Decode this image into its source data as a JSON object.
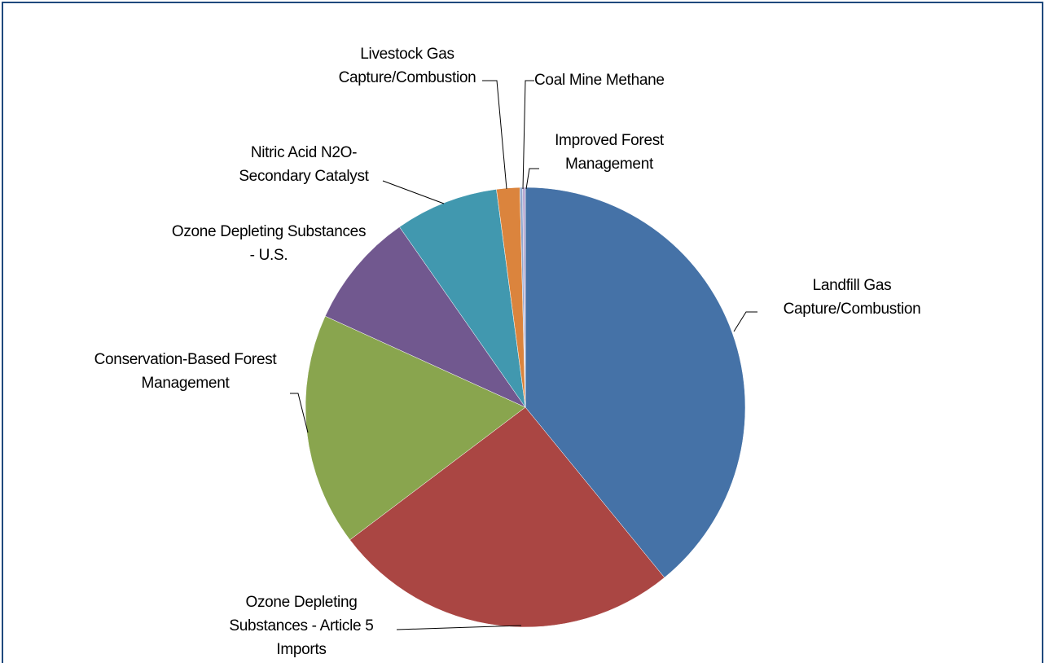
{
  "chart_data": {
    "type": "pie",
    "categories": [
      "Landfill Gas Capture/Combustion",
      "Ozone Depleting Substances - Article 5 Imports",
      "Conservation-Based Forest Management",
      "Ozone Depleting Substances - U.S.",
      "Nitric Acid N2O-Secondary Catalyst",
      "Livestock Gas Capture/Combustion",
      "Coal Mine Methane",
      "Improved Forest Management"
    ],
    "values": [
      39.1,
      25.6,
      17.1,
      8.5,
      7.6,
      1.7,
      0.2,
      0.2
    ],
    "colors": [
      "#4572a7",
      "#aa4643",
      "#89a54e",
      "#71588f",
      "#4198af",
      "#db843d",
      "#93a9cf",
      "#b9a8d1"
    ]
  }
}
